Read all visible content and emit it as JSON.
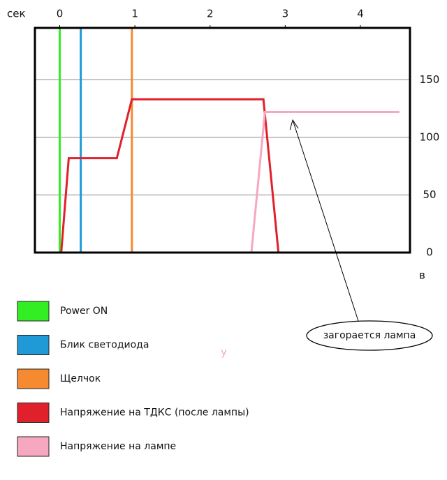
{
  "chart_data": {
    "type": "line",
    "x_label": "сек",
    "y_label": "в",
    "xlim": [
      -0.33,
      4.66
    ],
    "xticks": [
      0,
      1,
      2,
      3,
      4
    ],
    "ylim": [
      0,
      195
    ],
    "yticks": [
      0,
      50,
      100,
      150
    ],
    "grid": true,
    "series": [
      {
        "name": "Power  ON",
        "color": "#33ee22",
        "x": [
          0,
          0
        ],
        "values": [
          0,
          195
        ]
      },
      {
        "name": "Блик светодиода",
        "color": "#1f9ad6",
        "x": [
          0.28,
          0.28
        ],
        "values": [
          0,
          195
        ]
      },
      {
        "name": "Щелчок",
        "color": "#f58a30",
        "x": [
          0.96,
          0.96
        ],
        "values": [
          0,
          195
        ]
      },
      {
        "name": "Напряжение  на ТДКС (после лампы)",
        "color": "#e0202a",
        "x": [
          0.02,
          0.12,
          0.76,
          0.96,
          2.71,
          2.91
        ],
        "values": [
          0,
          82,
          82,
          133,
          133,
          0
        ]
      },
      {
        "name": "Напряжение  на  лампе",
        "color": "#f5a8c0",
        "x": [
          2.55,
          2.73,
          4.52
        ],
        "values": [
          0,
          122,
          122
        ]
      }
    ],
    "annotation": {
      "text": "загорается лампа",
      "x": 3.1,
      "y": 115
    },
    "stray_text": "у"
  }
}
